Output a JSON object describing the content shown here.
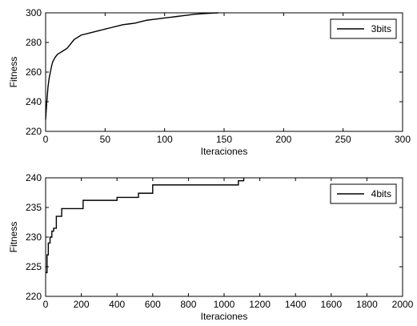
{
  "chart_data": [
    {
      "type": "line",
      "xlabel": "Iteraciones",
      "ylabel": "Fitness",
      "xlim": [
        0,
        300
      ],
      "ylim": [
        220,
        300
      ],
      "xticks": [
        0,
        50,
        100,
        150,
        200,
        250,
        300
      ],
      "yticks": [
        220,
        240,
        260,
        280,
        300
      ],
      "grid": false,
      "legend_position": "top-right",
      "line_color": "#000000",
      "step": false,
      "series": [
        {
          "name": "3bits",
          "x": [
            0,
            1,
            2,
            3,
            4,
            5,
            6,
            8,
            10,
            12,
            14,
            16,
            18,
            20,
            22,
            24,
            26,
            28,
            30,
            35,
            40,
            45,
            50,
            55,
            60,
            65,
            70,
            75,
            80,
            85,
            90,
            95,
            100,
            105,
            110,
            115,
            120,
            125,
            130,
            135,
            140,
            145
          ],
          "y": [
            228,
            240,
            250,
            256,
            260,
            264,
            267,
            270,
            272,
            273,
            274,
            275,
            276,
            278,
            280,
            282,
            283,
            284,
            285,
            286,
            287,
            288,
            289,
            290,
            291,
            292,
            292.5,
            293,
            294,
            295,
            295.5,
            296,
            296.5,
            297,
            297.5,
            298,
            298.5,
            299,
            299.3,
            299.6,
            299.8,
            300
          ]
        }
      ]
    },
    {
      "type": "line",
      "xlabel": "Iteraciones",
      "ylabel": "Fitness",
      "xlim": [
        0,
        2000
      ],
      "ylim": [
        220,
        240
      ],
      "xticks": [
        0,
        200,
        400,
        600,
        800,
        1000,
        1200,
        1400,
        1600,
        1800,
        2000
      ],
      "yticks": [
        220,
        225,
        230,
        235,
        240
      ],
      "grid": false,
      "legend_position": "top-right",
      "line_color": "#000000",
      "step": true,
      "series": [
        {
          "name": "4bits",
          "x": [
            0,
            8,
            15,
            25,
            35,
            45,
            60,
            90,
            210,
            400,
            520,
            600,
            1080,
            1110
          ],
          "y": [
            224,
            227,
            229,
            230,
            231,
            231.5,
            233.5,
            234.8,
            236.2,
            236.7,
            237.4,
            238.8,
            239.5,
            240
          ]
        }
      ]
    }
  ]
}
